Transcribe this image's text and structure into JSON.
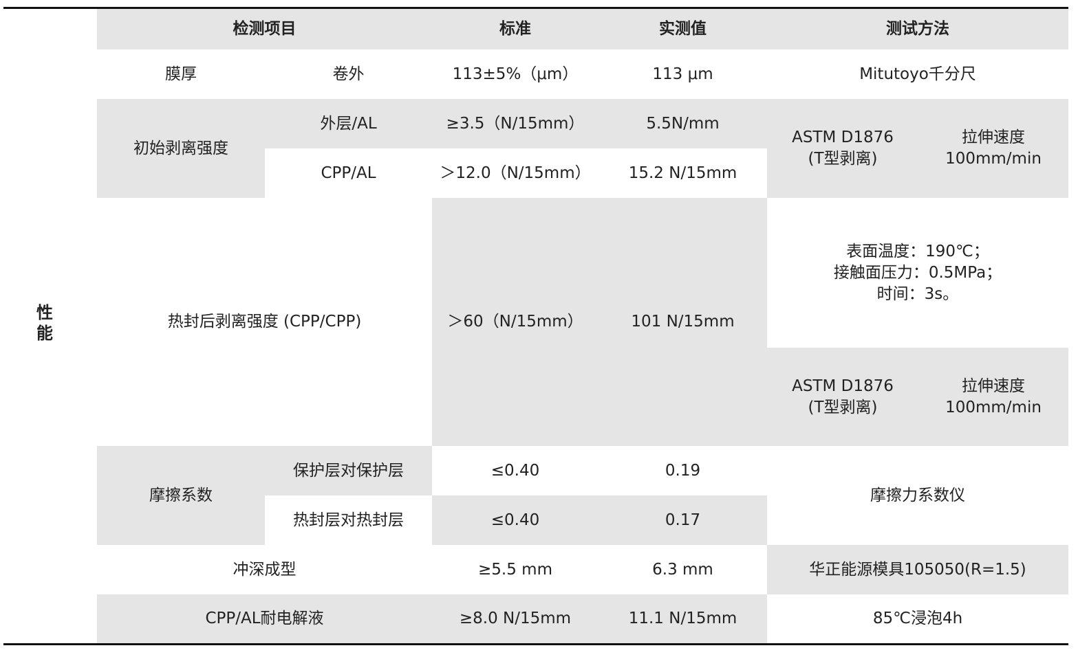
{
  "side_label": "性\n能",
  "header": {
    "item": "检测项目",
    "standard": "标准",
    "measured": "实测值",
    "method": "测试方法"
  },
  "rows": {
    "thickness": {
      "item": "膜厚",
      "sub": "卷外",
      "standard": "113±5%（μm）",
      "measured": "113 μm",
      "method": "Mitutoyo千分尺"
    },
    "initial_peel": {
      "item": "初始剥离强度",
      "outer": {
        "sub": "外层/AL",
        "standard": "≥3.5（N/15mm）",
        "measured": "5.5N/mm"
      },
      "cpp": {
        "sub": "CPP/AL",
        "standard": "＞12.0（N/15mm）",
        "measured": "15.2 N/15mm"
      },
      "method_a": "ASTM D1876\n(T型剥离)",
      "method_b": "拉伸速度\n100mm/min"
    },
    "heat_seal_peel": {
      "item": "热封后剥离强度 (CPP/CPP)",
      "standard": "＞60（N/15mm）",
      "measured": "101 N/15mm",
      "method_conditions": "表面温度：190℃；\n接触面压力：0.5MPa；\n时间：3s。",
      "method_a": "ASTM D1876\n(T型剥离)",
      "method_b": "拉伸速度\n100mm/min"
    },
    "friction": {
      "item": "摩擦系数",
      "protective": {
        "sub": "保护层对保护层",
        "standard": "≤0.40",
        "measured": "0.19"
      },
      "sealing": {
        "sub": "热封层对热封层",
        "standard": "≤0.40",
        "measured": "0.17"
      },
      "method": "摩擦力系数仪"
    },
    "deep_draw": {
      "item": "冲深成型",
      "standard": "≥5.5 mm",
      "measured": "6.3 mm",
      "method": "华正能源模具105050(R=1.5)"
    },
    "electrolyte": {
      "item": "CPP/AL耐电解液",
      "standard": "≥8.0 N/15mm",
      "measured": "11.1 N/15mm",
      "method": "85℃浸泡4h"
    }
  }
}
